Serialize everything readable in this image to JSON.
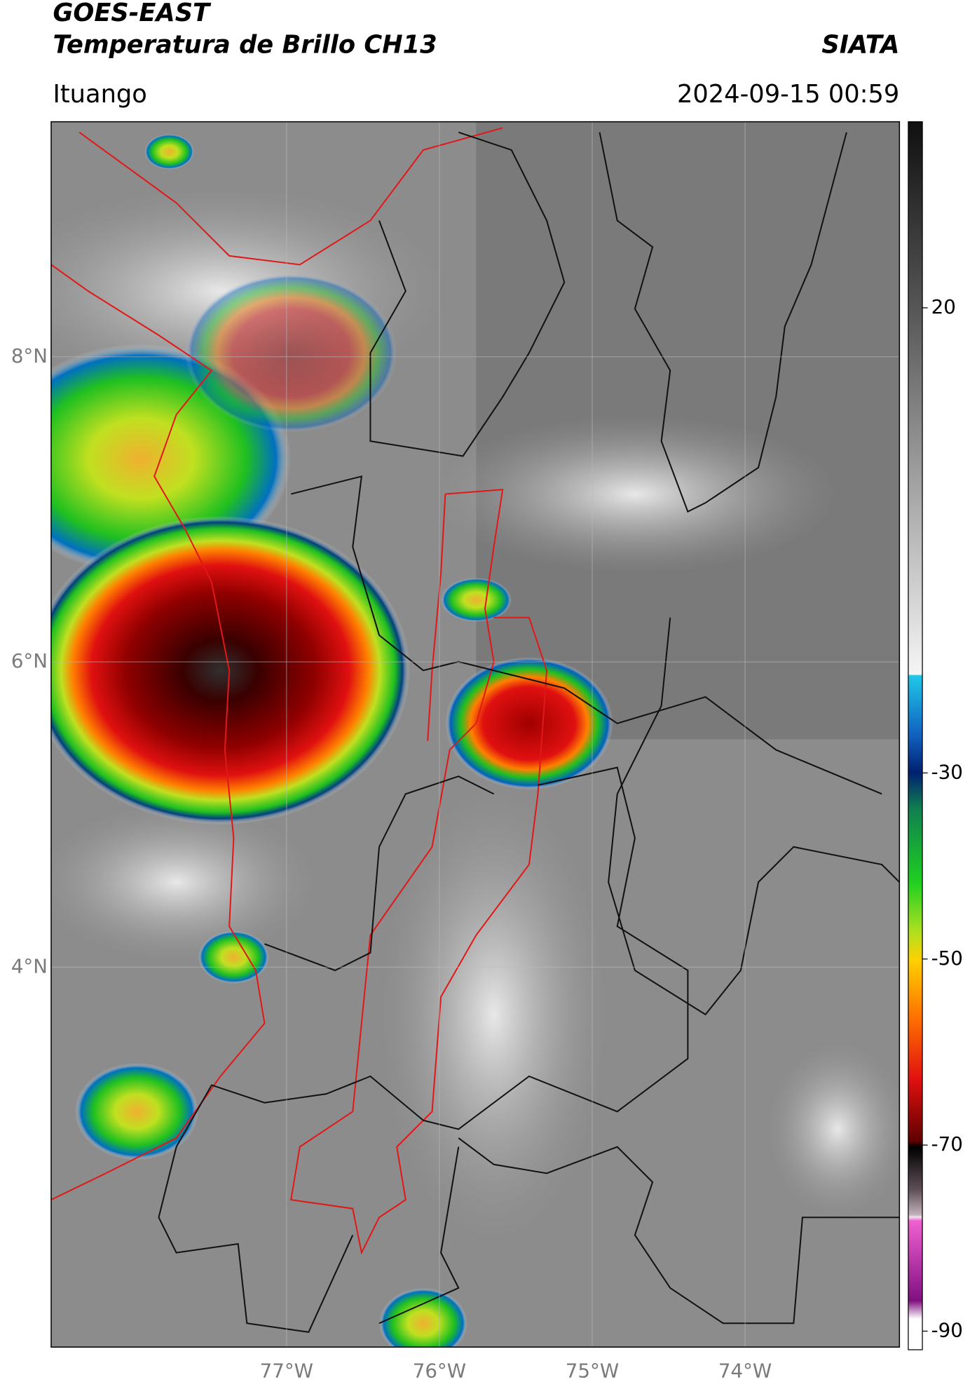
{
  "header": {
    "title": "GOES-EAST",
    "subtitle": "Temperatura de Brillo CH13",
    "source": "SIATA",
    "location": "Ituango",
    "timestamp": "2024-09-15 00:59"
  },
  "map": {
    "xlim": [
      -78.54,
      -72.99
    ],
    "ylim": [
      1.51,
      9.54
    ],
    "xticks": [
      {
        "value": -77,
        "label": "77°W"
      },
      {
        "value": -76,
        "label": "76°W"
      },
      {
        "value": -75,
        "label": "75°W"
      },
      {
        "value": -74,
        "label": "74°W"
      }
    ],
    "yticks": [
      {
        "value": 8,
        "label": "8°N"
      },
      {
        "value": 6,
        "label": "6°N"
      },
      {
        "value": 4,
        "label": "4°N"
      }
    ],
    "grid": true
  },
  "colorbar": {
    "range": [
      -92,
      40
    ],
    "ticks": [
      20,
      -30,
      -50,
      -70,
      -90
    ]
  }
}
